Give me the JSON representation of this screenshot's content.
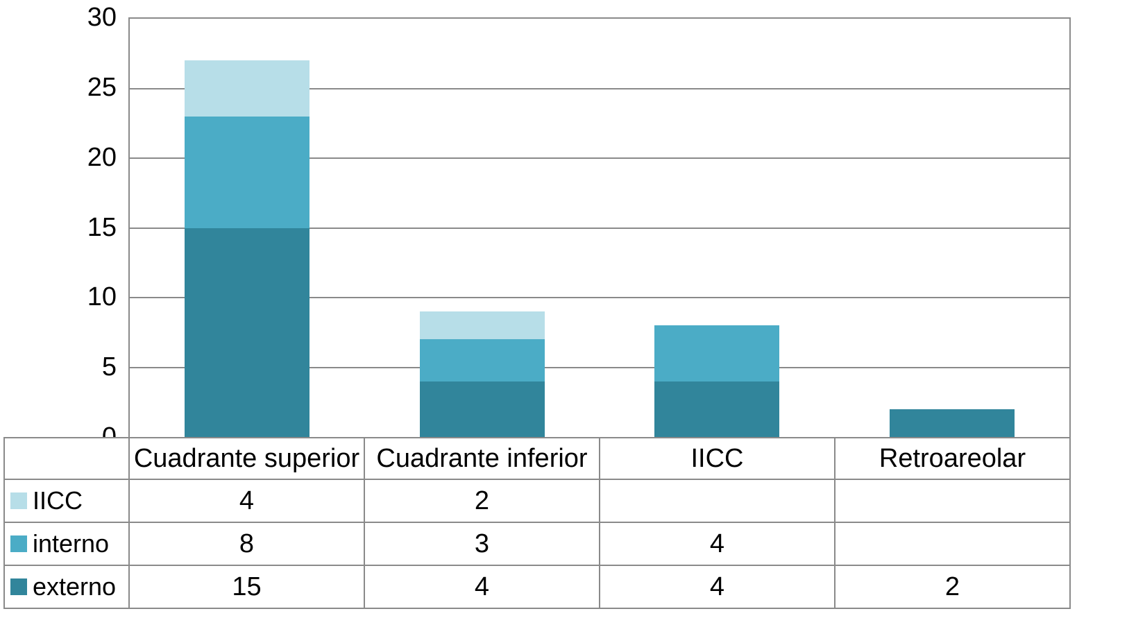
{
  "chart_data": {
    "type": "bar",
    "stacked": true,
    "title": "",
    "xlabel": "",
    "ylabel": "",
    "categories": [
      "Cuadrante superior",
      "Cuadrante inferior",
      "IICC",
      "Retroareolar"
    ],
    "series": [
      {
        "name": "IICC",
        "color": "#b7dee8",
        "values": [
          4,
          2,
          null,
          null
        ]
      },
      {
        "name": "interno",
        "color": "#4bacc6",
        "values": [
          8,
          3,
          4,
          null
        ]
      },
      {
        "name": "externo",
        "color": "#31859b",
        "values": [
          15,
          4,
          4,
          2
        ]
      }
    ],
    "ylim": [
      0,
      30
    ],
    "yticks": [
      0,
      5,
      10,
      15,
      20,
      25,
      30
    ],
    "grid": true,
    "legend_position": "table-rows-left"
  }
}
